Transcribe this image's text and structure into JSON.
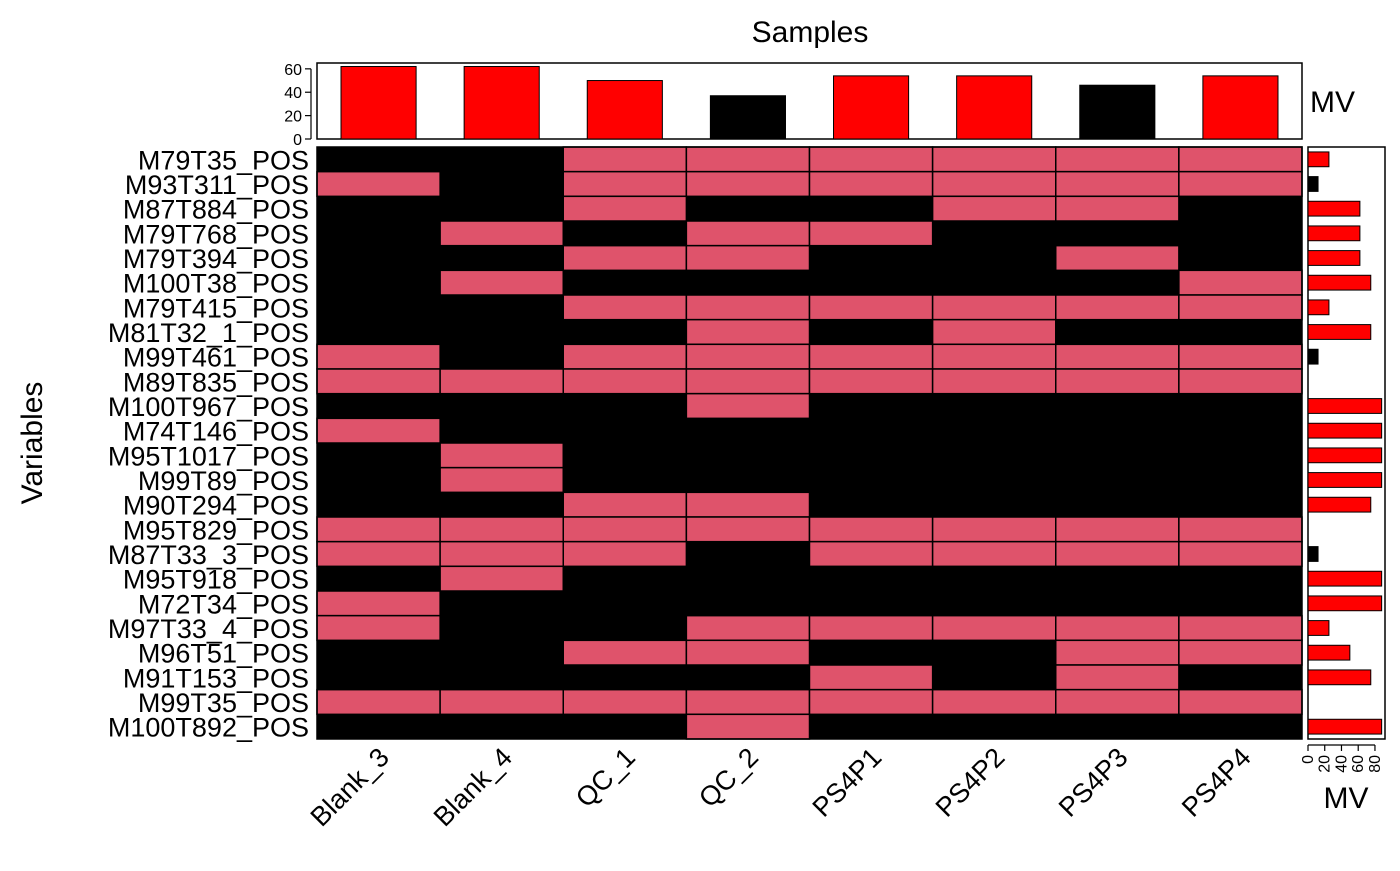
{
  "chart_data": {
    "type": "heatmap",
    "title": "Samples",
    "xlabel": "",
    "ylabel": "Variables",
    "top_bar_label": "MV",
    "side_bar_label": "MV",
    "colors": {
      "present": "#DF536B",
      "missing": "#000000",
      "bar_high": "#FF0000",
      "bar_low": "#000000"
    },
    "samples": [
      "Blank_3",
      "Blank_4",
      "QC_1",
      "QC_2",
      "PS4P1",
      "PS4P2",
      "PS4P3",
      "PS4P4"
    ],
    "variables": [
      "M79T35_POS",
      "M93T311_POS",
      "M87T884_POS",
      "M79T768_POS",
      "M79T394_POS",
      "M100T38_POS",
      "M79T415_POS",
      "M81T32_1_POS",
      "M99T461_POS",
      "M89T835_POS",
      "M100T967_POS",
      "M74T146_POS",
      "M95T1017_POS",
      "M99T89_POS",
      "M90T294_POS",
      "M95T829_POS",
      "M87T33_3_POS",
      "M95T918_POS",
      "M72T34_POS",
      "M97T33_4_POS",
      "M96T51_POS",
      "M91T153_POS",
      "M99T35_POS",
      "M100T892_POS"
    ],
    "matrix": [
      [
        0,
        0,
        1,
        1,
        1,
        1,
        1,
        1
      ],
      [
        1,
        0,
        1,
        1,
        1,
        1,
        1,
        1
      ],
      [
        0,
        0,
        1,
        0,
        0,
        1,
        1,
        0
      ],
      [
        0,
        1,
        0,
        1,
        1,
        0,
        0,
        0
      ],
      [
        0,
        0,
        1,
        1,
        0,
        0,
        1,
        0
      ],
      [
        0,
        1,
        0,
        0,
        0,
        0,
        0,
        1
      ],
      [
        0,
        0,
        1,
        1,
        1,
        1,
        1,
        1
      ],
      [
        0,
        0,
        0,
        1,
        0,
        1,
        0,
        0
      ],
      [
        1,
        0,
        1,
        1,
        1,
        1,
        1,
        1
      ],
      [
        1,
        1,
        1,
        1,
        1,
        1,
        1,
        1
      ],
      [
        0,
        0,
        0,
        1,
        0,
        0,
        0,
        0
      ],
      [
        1,
        0,
        0,
        0,
        0,
        0,
        0,
        0
      ],
      [
        0,
        1,
        0,
        0,
        0,
        0,
        0,
        0
      ],
      [
        0,
        1,
        0,
        0,
        0,
        0,
        0,
        0
      ],
      [
        0,
        0,
        1,
        1,
        0,
        0,
        0,
        0
      ],
      [
        1,
        1,
        1,
        1,
        1,
        1,
        1,
        1
      ],
      [
        1,
        1,
        1,
        0,
        1,
        1,
        1,
        1
      ],
      [
        0,
        1,
        0,
        0,
        0,
        0,
        0,
        0
      ],
      [
        1,
        0,
        0,
        0,
        0,
        0,
        0,
        0
      ],
      [
        1,
        0,
        0,
        1,
        1,
        1,
        1,
        1
      ],
      [
        0,
        0,
        1,
        1,
        0,
        0,
        1,
        1
      ],
      [
        0,
        0,
        0,
        0,
        1,
        0,
        1,
        0
      ],
      [
        1,
        1,
        1,
        1,
        1,
        1,
        1,
        1
      ],
      [
        0,
        0,
        0,
        1,
        0,
        0,
        0,
        0
      ]
    ],
    "sample_mv": [
      62,
      62,
      50,
      37,
      54,
      54,
      46,
      54
    ],
    "sample_mv_highlight": [
      true,
      true,
      true,
      false,
      true,
      true,
      false,
      true
    ],
    "sample_mv_ylim": [
      0,
      65
    ],
    "sample_mv_ticks": [
      0,
      20,
      40,
      60
    ],
    "variable_mv": [
      25,
      12,
      62,
      62,
      62,
      75,
      25,
      75,
      12,
      0,
      88,
      88,
      88,
      88,
      75,
      0,
      12,
      88,
      88,
      25,
      50,
      75,
      0,
      88
    ],
    "variable_mv_highlight": [
      true,
      false,
      true,
      true,
      true,
      true,
      true,
      true,
      false,
      true,
      true,
      true,
      true,
      true,
      true,
      true,
      false,
      true,
      true,
      true,
      true,
      true,
      true,
      true
    ],
    "variable_mv_xlim": [
      0,
      92
    ],
    "variable_mv_ticks": [
      0,
      20,
      40,
      60,
      80
    ],
    "grid": false
  }
}
